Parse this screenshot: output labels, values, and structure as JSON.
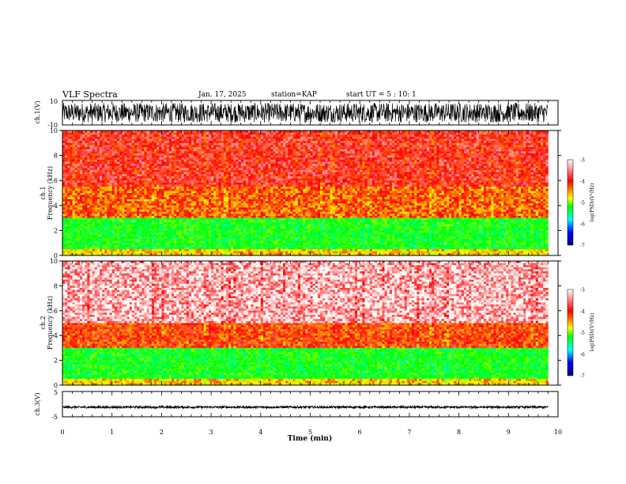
{
  "header": {
    "title": "VLF Spectra",
    "date": "Jan. 17, 2025",
    "station": "station=KAP",
    "start": "start UT =  5 : 10: 1"
  },
  "chart_data": [
    {
      "type": "line",
      "panel": "ch1-waveform",
      "ylabel": "ch.1(V)",
      "ylim": [
        -10,
        10
      ],
      "ytick_labels": [
        "10",
        "-10"
      ],
      "xlim": [
        0,
        10
      ],
      "data_end_min": 9.8,
      "amplitude_range_v": [
        -8,
        8
      ]
    },
    {
      "type": "heatmap",
      "panel": "ch1-spectrogram",
      "ylabel": "ch.1 Frequency (kHz)",
      "ylim": [
        0,
        10
      ],
      "yticks": [
        "0",
        "2",
        "4",
        "6",
        "8",
        "10"
      ],
      "xlim": [
        0,
        10
      ],
      "colorbar": {
        "label": "log(PSD)(V²/Hz)",
        "range": [
          -7,
          -3
        ],
        "ticks": [
          "-3",
          "-4",
          "-5",
          "-6",
          "-7"
        ]
      },
      "bands": [
        {
          "freq_khz": [
            0,
            0.5
          ],
          "log_psd": -4.2
        },
        {
          "freq_khz": [
            0.5,
            3.0
          ],
          "log_psd": -5.0
        },
        {
          "freq_khz": [
            3.0,
            5.5
          ],
          "log_psd": -3.9
        },
        {
          "freq_khz": [
            5.5,
            10
          ],
          "log_psd": -3.6
        }
      ]
    },
    {
      "type": "heatmap",
      "panel": "ch2-spectrogram",
      "ylabel": "ch.2 Frequency (kHz)",
      "ylim": [
        0,
        10
      ],
      "yticks": [
        "0",
        "2",
        "4",
        "6",
        "8",
        "10"
      ],
      "xlim": [
        0,
        10
      ],
      "colorbar": {
        "label": "log(PSD)(V²/Hz)",
        "range": [
          -7,
          -3
        ],
        "ticks": [
          "-3",
          "-4",
          "-5",
          "-6",
          "-7"
        ]
      },
      "bands": [
        {
          "freq_khz": [
            0,
            0.5
          ],
          "log_psd": -4.2
        },
        {
          "freq_khz": [
            0.5,
            3.0
          ],
          "log_psd": -5.0
        },
        {
          "freq_khz": [
            3.0,
            5.0
          ],
          "log_psd": -3.8
        },
        {
          "freq_khz": [
            5.0,
            10
          ],
          "log_psd": -3.2
        }
      ]
    },
    {
      "type": "line",
      "panel": "ch3-waveform",
      "ylabel": "ch.3(V)",
      "ylim": [
        -5,
        5
      ],
      "ytick_labels": [
        "5",
        "-5"
      ],
      "xlim": [
        0,
        10
      ],
      "data_end_min": 9.8,
      "amplitude_range_v": [
        -1.6,
        -0.8
      ]
    }
  ],
  "x_axis": {
    "label": "Time (min)",
    "ticks": [
      "0",
      "1",
      "2",
      "3",
      "4",
      "5",
      "6",
      "7",
      "8",
      "9",
      "10"
    ]
  },
  "colors": {
    "colormap": [
      "#000080",
      "#0000ff",
      "#00ffff",
      "#00ff00",
      "#ffff00",
      "#ff0000",
      "#ffffff"
    ],
    "axis": "#000000"
  }
}
